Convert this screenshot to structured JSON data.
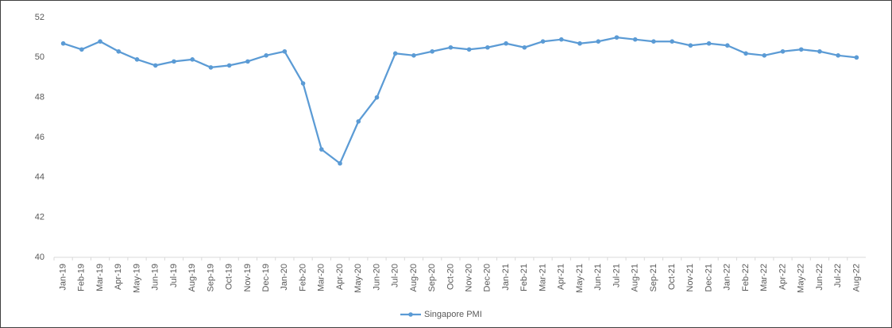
{
  "chart_data": {
    "type": "line",
    "categories": [
      "Jan-19",
      "Feb-19",
      "Mar-19",
      "Apr-19",
      "May-19",
      "Jun-19",
      "Jul-19",
      "Aug-19",
      "Sep-19",
      "Oct-19",
      "Nov-19",
      "Dec-19",
      "Jan-20",
      "Feb-20",
      "Mar-20",
      "Apr-20",
      "May-20",
      "Jun-20",
      "Jul-20",
      "Aug-20",
      "Sep-20",
      "Oct-20",
      "Nov-20",
      "Dec-20",
      "Jan-21",
      "Feb-21",
      "Mar-21",
      "Apr-21",
      "May-21",
      "Jun-21",
      "Jul-21",
      "Aug-21",
      "Sep-21",
      "Oct-21",
      "Nov-21",
      "Dec-21",
      "Jan-22",
      "Feb-22",
      "Mar-22",
      "Apr-22",
      "May-22",
      "Jun-22",
      "Jul-22",
      "Aug-22"
    ],
    "series": [
      {
        "name": "Singapore PMI",
        "color": "#5b9bd5",
        "values": [
          50.7,
          50.4,
          50.8,
          50.3,
          49.9,
          49.6,
          49.8,
          49.9,
          49.5,
          49.6,
          49.8,
          50.1,
          50.3,
          48.7,
          45.4,
          44.7,
          46.8,
          48.0,
          50.2,
          50.1,
          50.3,
          50.5,
          50.4,
          50.5,
          50.7,
          50.5,
          50.8,
          50.9,
          50.7,
          50.8,
          51.0,
          50.9,
          50.8,
          50.8,
          50.6,
          50.7,
          50.6,
          50.2,
          50.1,
          50.3,
          50.4,
          50.3,
          50.1,
          50.0
        ]
      }
    ],
    "ylim": [
      40,
      52
    ],
    "yticks": [
      40,
      42,
      44,
      46,
      48,
      50,
      52
    ],
    "grid": false,
    "legend": "bottom"
  }
}
